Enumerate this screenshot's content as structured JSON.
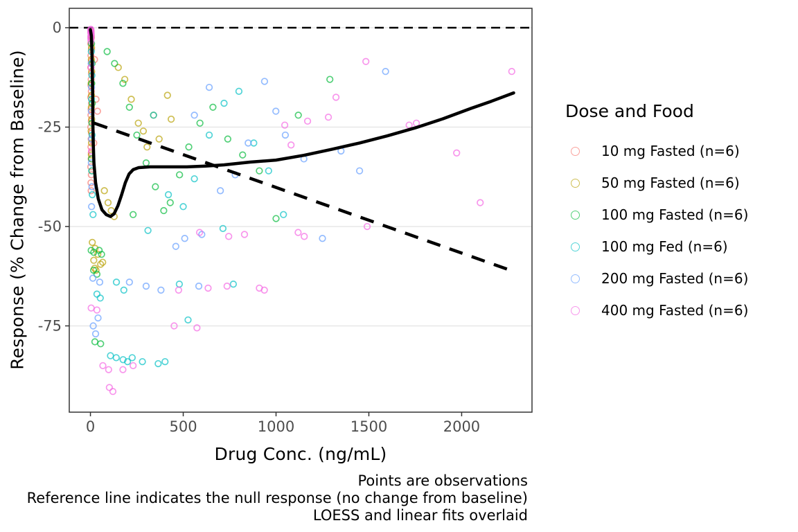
{
  "chart_data": {
    "type": "scatter",
    "xlabel": "Drug Conc. (ng/mL)",
    "ylabel": "Response (% Change from Baseline)",
    "x_ticks": [
      0,
      500,
      1000,
      1500,
      2000
    ],
    "y_ticks": [
      0,
      -25,
      -50,
      -75
    ],
    "xlim": [
      -114,
      2379
    ],
    "ylim": [
      -96.7,
      4.88
    ],
    "grid": "horizontal-major-only",
    "panel_border_color": "#333333",
    "gridline_color": "#e7e7e7",
    "tick_label_color": "#4d4d4d",
    "point_opacity": 0.68,
    "reference_line": {
      "y": 0,
      "style": "dashed",
      "color": "#000000",
      "meaning": "null response (no change from baseline)"
    },
    "linear_fit": {
      "style": "dashed",
      "color": "#000000",
      "x": [
        20,
        2280
      ],
      "y": [
        -24,
        -61.3
      ]
    },
    "loess_fit": {
      "style": "solid",
      "color": "#000000",
      "points": [
        [
          0,
          -0.5
        ],
        [
          5,
          -2
        ],
        [
          8,
          -6
        ],
        [
          10,
          -11
        ],
        [
          12,
          -17
        ],
        [
          13,
          -23
        ],
        [
          15,
          -29
        ],
        [
          19,
          -34
        ],
        [
          28,
          -39
        ],
        [
          42,
          -43
        ],
        [
          62,
          -45.8
        ],
        [
          85,
          -47
        ],
        [
          108,
          -47.5
        ],
        [
          128,
          -46.8
        ],
        [
          148,
          -44.8
        ],
        [
          168,
          -42
        ],
        [
          188,
          -39
        ],
        [
          208,
          -36.8
        ],
        [
          230,
          -35.7
        ],
        [
          260,
          -35.2
        ],
        [
          320,
          -35
        ],
        [
          420,
          -35
        ],
        [
          520,
          -35
        ],
        [
          620,
          -34.8
        ],
        [
          720,
          -34.5
        ],
        [
          860,
          -33.8
        ],
        [
          1000,
          -33.3
        ],
        [
          1150,
          -32.1
        ],
        [
          1300,
          -30.6
        ],
        [
          1450,
          -29
        ],
        [
          1600,
          -27.2
        ],
        [
          1750,
          -25.2
        ],
        [
          1900,
          -22.9
        ],
        [
          2050,
          -20.3
        ],
        [
          2160,
          -18.5
        ],
        [
          2280,
          -16.4
        ]
      ]
    },
    "legend": {
      "title": "Dose and Food",
      "position": "right",
      "items": [
        {
          "label": "10 mg Fasted (n=6)",
          "color": "#F8766D"
        },
        {
          "label": "50 mg Fasted (n=6)",
          "color": "#B79F00"
        },
        {
          "label": "100 mg Fasted (n=6)",
          "color": "#00BA38"
        },
        {
          "label": "100 mg Fed (n=6)",
          "color": "#00BFC4"
        },
        {
          "label": "200 mg Fasted (n=6)",
          "color": "#619CFF"
        },
        {
          "label": "400 mg Fasted (n=6)",
          "color": "#F564E3"
        }
      ]
    },
    "series": [
      {
        "name": "10 mg Fasted (n=6)",
        "color": "#F8766D",
        "points": [
          [
            3,
            -1
          ],
          [
            5,
            -2.5
          ],
          [
            2,
            -4
          ],
          [
            6,
            -5.5
          ],
          [
            3,
            -7
          ],
          [
            5,
            -8.5
          ],
          [
            2,
            -10
          ],
          [
            6,
            -11.5
          ],
          [
            4,
            -13
          ],
          [
            3,
            -14.5
          ],
          [
            5,
            -16
          ],
          [
            2,
            -17.5
          ],
          [
            6,
            -19
          ],
          [
            4,
            -20.5
          ],
          [
            3,
            -22
          ],
          [
            5,
            -23.5
          ],
          [
            2,
            -25
          ],
          [
            6,
            -26.5
          ],
          [
            4,
            -28
          ],
          [
            3,
            -30
          ],
          [
            5,
            -31.5
          ],
          [
            4,
            -33
          ],
          [
            2,
            -35
          ],
          [
            5,
            -37
          ],
          [
            3,
            -39
          ],
          [
            4,
            -41
          ],
          [
            22,
            -8
          ],
          [
            30,
            -18
          ],
          [
            38,
            -21
          ],
          [
            18,
            -29
          ]
        ]
      },
      {
        "name": "50 mg Fasted (n=6)",
        "color": "#B79F00",
        "points": [
          [
            4,
            -2
          ],
          [
            6,
            -5
          ],
          [
            5,
            -8
          ],
          [
            7,
            -11
          ],
          [
            4,
            -14
          ],
          [
            6,
            -17
          ],
          [
            5,
            -20
          ],
          [
            7,
            -23
          ],
          [
            4,
            -26
          ],
          [
            6,
            -29
          ],
          [
            5,
            -32
          ],
          [
            8,
            -36
          ],
          [
            10,
            -54
          ],
          [
            25,
            -55.5
          ],
          [
            40,
            -57
          ],
          [
            18,
            -58.5
          ],
          [
            55,
            -59.5
          ],
          [
            30,
            -61
          ],
          [
            66,
            -59
          ],
          [
            23,
            -60.5
          ],
          [
            95,
            -44
          ],
          [
            112,
            -46
          ],
          [
            128,
            -47.5
          ],
          [
            75,
            -41
          ],
          [
            150,
            -10
          ],
          [
            185,
            -13
          ],
          [
            220,
            -18
          ],
          [
            258,
            -24
          ],
          [
            285,
            -26
          ],
          [
            305,
            -30
          ],
          [
            340,
            -22
          ],
          [
            415,
            -17
          ],
          [
            370,
            -28
          ],
          [
            435,
            -23
          ]
        ]
      },
      {
        "name": "100 mg Fasted (n=6)",
        "color": "#00BA38",
        "points": [
          [
            6,
            -4
          ],
          [
            9,
            -9
          ],
          [
            7,
            -14
          ],
          [
            10,
            -19
          ],
          [
            8,
            -24
          ],
          [
            6,
            -33
          ],
          [
            4,
            -56
          ],
          [
            18,
            -56.5
          ],
          [
            47,
            -56
          ],
          [
            60,
            -57
          ],
          [
            17,
            -61
          ],
          [
            35,
            -62
          ],
          [
            24,
            -79
          ],
          [
            55,
            -79.5
          ],
          [
            90,
            -6
          ],
          [
            130,
            -9
          ],
          [
            175,
            -14
          ],
          [
            210,
            -20
          ],
          [
            250,
            -27
          ],
          [
            300,
            -34
          ],
          [
            350,
            -40
          ],
          [
            395,
            -46
          ],
          [
            430,
            -44
          ],
          [
            480,
            -37
          ],
          [
            530,
            -30
          ],
          [
            590,
            -24
          ],
          [
            660,
            -20
          ],
          [
            740,
            -28
          ],
          [
            820,
            -32
          ],
          [
            910,
            -36
          ],
          [
            1000,
            -48
          ],
          [
            1120,
            -22
          ],
          [
            1290,
            -13
          ],
          [
            230,
            -47
          ]
        ]
      },
      {
        "name": "100 mg Fed (n=6)",
        "color": "#00BFC4",
        "points": [
          [
            5,
            -6
          ],
          [
            8,
            -12
          ],
          [
            6,
            -18
          ],
          [
            9,
            -27
          ],
          [
            7,
            -36
          ],
          [
            10,
            -42
          ],
          [
            14,
            -47
          ],
          [
            35,
            -67
          ],
          [
            53,
            -68
          ],
          [
            140,
            -64
          ],
          [
            180,
            -66
          ],
          [
            176,
            -83.5
          ],
          [
            200,
            -84
          ],
          [
            225,
            -83
          ],
          [
            280,
            -84
          ],
          [
            365,
            -84.5
          ],
          [
            402,
            -84
          ],
          [
            108,
            -82.5
          ],
          [
            139,
            -83
          ],
          [
            479,
            -64.5
          ],
          [
            770,
            -64.5
          ],
          [
            714,
            -50.5
          ],
          [
            526,
            -73.5
          ],
          [
            310,
            -51
          ],
          [
            420,
            -42
          ],
          [
            500,
            -45
          ],
          [
            560,
            -38
          ],
          [
            640,
            -27
          ],
          [
            720,
            -19
          ],
          [
            800,
            -16
          ],
          [
            880,
            -29
          ],
          [
            960,
            -36
          ],
          [
            1040,
            -47
          ],
          [
            340,
            -22
          ]
        ]
      },
      {
        "name": "200 mg Fasted (n=6)",
        "color": "#619CFF",
        "points": [
          [
            4,
            -9
          ],
          [
            6,
            -15
          ],
          [
            5,
            -21
          ],
          [
            7,
            -28
          ],
          [
            5,
            -34
          ],
          [
            8,
            -40
          ],
          [
            6,
            -45
          ],
          [
            13,
            -63
          ],
          [
            50,
            -64
          ],
          [
            41,
            -73
          ],
          [
            15,
            -75
          ],
          [
            28,
            -77
          ],
          [
            508,
            -53
          ],
          [
            584,
            -65
          ],
          [
            300,
            -65
          ],
          [
            380,
            -66
          ],
          [
            460,
            -55
          ],
          [
            600,
            -52
          ],
          [
            700,
            -41
          ],
          [
            780,
            -37
          ],
          [
            850,
            -29
          ],
          [
            938,
            -13.5
          ],
          [
            999,
            -21
          ],
          [
            1050,
            -27
          ],
          [
            1150,
            -33
          ],
          [
            1250,
            -53
          ],
          [
            1350,
            -31
          ],
          [
            1450,
            -36
          ],
          [
            1590,
            -11
          ],
          [
            640,
            -15
          ],
          [
            560,
            -22
          ],
          [
            210,
            -64
          ]
        ]
      },
      {
        "name": "400 mg Fasted (n=6)",
        "color": "#F564E3",
        "points": [
          [
            2,
            -0.4
          ],
          [
            3,
            -0.8
          ],
          [
            2,
            -1.2
          ],
          [
            4,
            -1.6
          ],
          [
            3,
            -2.1
          ],
          [
            2,
            -2.7
          ],
          [
            3,
            -3.3
          ],
          [
            2.5,
            -0.6
          ],
          [
            3.5,
            -1.4
          ],
          [
            2.8,
            -2.3
          ],
          [
            4,
            -10
          ],
          [
            6,
            -31
          ],
          [
            4,
            -70.5
          ],
          [
            35,
            -71
          ],
          [
            67,
            -85
          ],
          [
            98,
            -86
          ],
          [
            102,
            -90.5
          ],
          [
            121,
            -91.5
          ],
          [
            175,
            -86
          ],
          [
            230,
            -85
          ],
          [
            451,
            -75
          ],
          [
            574,
            -75.5
          ],
          [
            475,
            -66
          ],
          [
            634,
            -65.5
          ],
          [
            736,
            -65
          ],
          [
            910,
            -65.5
          ],
          [
            937,
            -66
          ],
          [
            588,
            -51.5
          ],
          [
            745,
            -52.5
          ],
          [
            830,
            -52
          ],
          [
            1119,
            -51.5
          ],
          [
            1152,
            -52.5
          ],
          [
            1491,
            -50
          ],
          [
            1047,
            -24.5
          ],
          [
            1081,
            -29.5
          ],
          [
            1170,
            -23.5
          ],
          [
            1282,
            -22.5
          ],
          [
            1323,
            -17.5
          ],
          [
            1484,
            -8.5
          ],
          [
            1717,
            -24.5
          ],
          [
            1756,
            -24
          ],
          [
            1973,
            -31.5
          ],
          [
            2100,
            -44
          ],
          [
            2270,
            -11
          ]
        ]
      }
    ],
    "captions": [
      "Points are observations",
      "Reference line indicates the null response (no change from baseline)",
      "LOESS and linear fits overlaid"
    ]
  }
}
